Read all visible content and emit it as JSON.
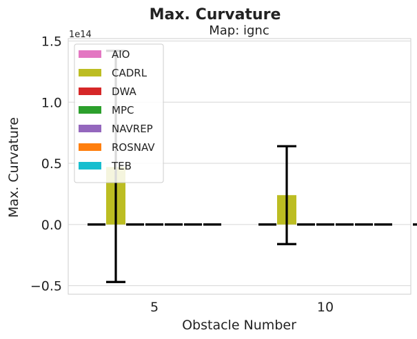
{
  "chart_data": {
    "type": "bar",
    "title": "Max. Curvature",
    "subtitle": "Map: ignc",
    "xlabel": "Obstacle Number",
    "ylabel": "Max. Curvature",
    "offset_text": "1e14",
    "xticks": [
      "5",
      "10"
    ],
    "yticks": [
      "−0.5",
      "0.0",
      "0.5",
      "1.0",
      "1.5"
    ],
    "ylim": [
      -0.57,
      1.52
    ],
    "grid": true,
    "legend_position": "top-left",
    "groups": [
      1,
      2
    ],
    "series": [
      {
        "name": "AIO",
        "color": "#e377c2",
        "values": [
          0,
          0
        ],
        "err_low": [
          0,
          0
        ],
        "err_high": [
          0,
          0
        ]
      },
      {
        "name": "CADRL",
        "color": "#bcbd22",
        "values": [
          0.47,
          0.24
        ],
        "err_low": [
          -0.47,
          -0.16
        ],
        "err_high": [
          1.42,
          0.64
        ]
      },
      {
        "name": "DWA",
        "color": "#d62728",
        "values": [
          0,
          0
        ],
        "err_low": [
          0,
          0
        ],
        "err_high": [
          0,
          0
        ]
      },
      {
        "name": "MPC",
        "color": "#2ca02c",
        "values": [
          0,
          0
        ],
        "err_low": [
          0,
          0
        ],
        "err_high": [
          0,
          0
        ]
      },
      {
        "name": "NAVREP",
        "color": "#9467bd",
        "values": [
          0,
          0
        ],
        "err_low": [
          0,
          0
        ],
        "err_high": [
          0,
          0
        ]
      },
      {
        "name": "ROSNAV",
        "color": "#ff7f0e",
        "values": [
          0,
          0
        ],
        "err_low": [
          0,
          0
        ],
        "err_high": [
          0,
          0
        ]
      },
      {
        "name": "TEB",
        "color": "#17becf",
        "values": [
          0,
          0
        ],
        "err_low": [
          0,
          0
        ],
        "err_high": [
          0,
          0
        ]
      }
    ],
    "extra_zero_marks_group2": 1
  }
}
